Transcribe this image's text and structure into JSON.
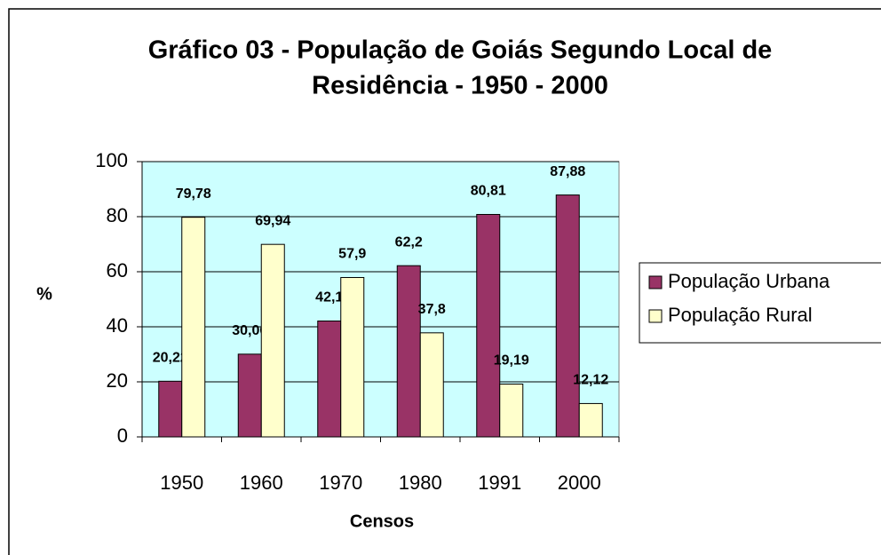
{
  "chart_data": {
    "type": "bar",
    "title": [
      "Gráfico 03 - População de Goiás Segundo Local de",
      "Residência - 1950 - 2000"
    ],
    "xlabel": "Censos",
    "ylabel": "%",
    "categories": [
      "1950",
      "1960",
      "1970",
      "1980",
      "1991",
      "2000"
    ],
    "series": [
      {
        "name": "População Urbana",
        "color": "#993366",
        "values": [
          20.22,
          30.06,
          42.1,
          62.2,
          80.81,
          87.88
        ],
        "value_labels": [
          "20,22",
          "30,06",
          "42,1",
          "62,2",
          "80,81",
          "87,88"
        ]
      },
      {
        "name": "População Rural",
        "color": "#ffffcc",
        "values": [
          79.78,
          69.94,
          57.9,
          37.8,
          19.19,
          12.12
        ],
        "value_labels": [
          "79,78",
          "69,94",
          "57,9",
          "37,8",
          "19,19",
          "12,12"
        ]
      }
    ],
    "ylim": [
      0,
      100
    ],
    "yticks": [
      0,
      20,
      40,
      60,
      80,
      100
    ],
    "grid": true,
    "legend": "right",
    "plot_background": "#ccffff"
  }
}
